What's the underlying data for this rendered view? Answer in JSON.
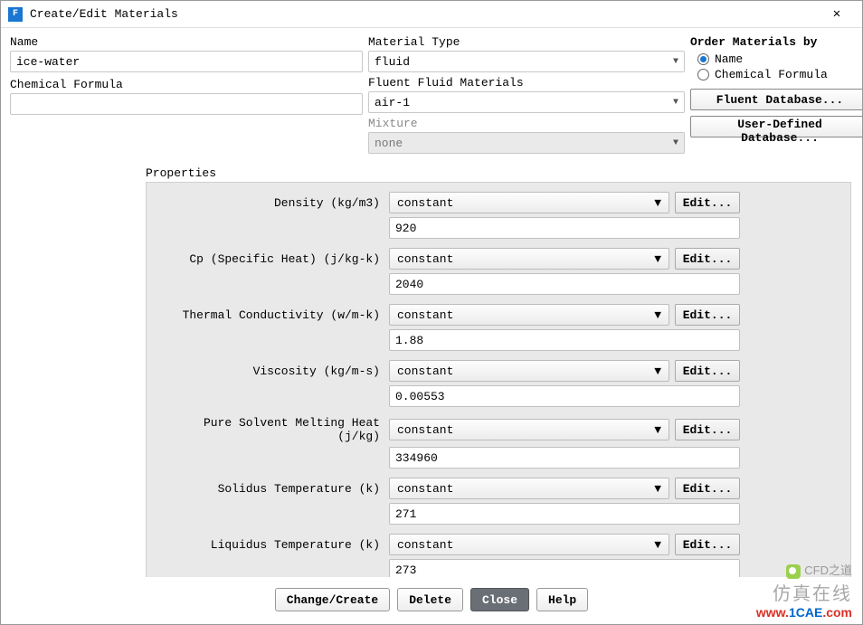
{
  "window": {
    "title": "Create/Edit Materials",
    "icon_letter": "F"
  },
  "fields": {
    "name_label": "Name",
    "name_value": "ice-water",
    "formula_label": "Chemical Formula",
    "formula_value": "",
    "material_type_label": "Material Type",
    "material_type_value": "fluid",
    "fluent_materials_label": "Fluent Fluid Materials",
    "fluent_materials_value": "air-1",
    "mixture_label": "Mixture",
    "mixture_value": "none"
  },
  "order": {
    "title": "Order Materials by",
    "opt_name": "Name",
    "opt_formula": "Chemical Formula",
    "selected": "name"
  },
  "db_buttons": {
    "fluent": "Fluent Database...",
    "user": "User-Defined Database..."
  },
  "properties": {
    "group_label": "Properties",
    "edit_label": "Edit...",
    "items": [
      {
        "label": "Density (kg/m3)",
        "method": "constant",
        "value": "920"
      },
      {
        "label": "Cp (Specific Heat) (j/kg-k)",
        "method": "constant",
        "value": "2040"
      },
      {
        "label": "Thermal Conductivity (w/m-k)",
        "method": "constant",
        "value": "1.88"
      },
      {
        "label": "Viscosity (kg/m-s)",
        "method": "constant",
        "value": "0.00553"
      },
      {
        "label": "Pure Solvent Melting Heat (j/kg)",
        "method": "constant",
        "value": "334960"
      },
      {
        "label": "Solidus Temperature (k)",
        "method": "constant",
        "value": "271"
      },
      {
        "label": "Liquidus Temperature (k)",
        "method": "constant",
        "value": "273"
      }
    ]
  },
  "buttons": {
    "change_create": "Change/Create",
    "delete": "Delete",
    "close": "Close",
    "help": "Help"
  },
  "watermark": {
    "brand": "CFD之道",
    "cn": "仿真在线",
    "url_www": "www.",
    "url_domain": "1CAE",
    "url_com": ".com"
  }
}
